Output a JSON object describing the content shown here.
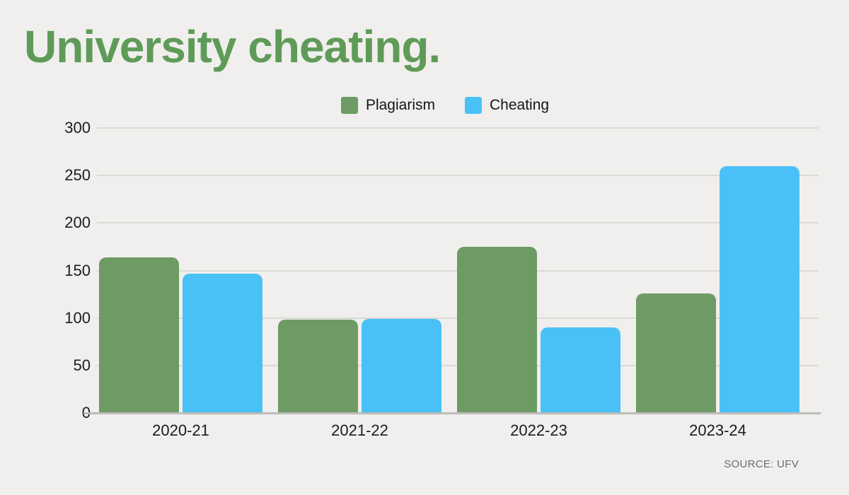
{
  "title": "University cheating.",
  "source": "SOURCE: UFV",
  "colors": {
    "background": "#f0efed",
    "title_text": "#5f9b58",
    "plagiarism_green": "#6e9a64",
    "cheating_blue": "#4ac1f6",
    "axis_text": "#1c1c1c",
    "gridline": "#d9d9d6",
    "baseline": "#bcbcba",
    "source_text": "#6b6b6b"
  },
  "chart_data": {
    "type": "bar",
    "title": "University cheating.",
    "categories": [
      "2020-21",
      "2021-22",
      "2022-23",
      "2023-24"
    ],
    "series": [
      {
        "name": "Plagiarism",
        "color": "#6e9a64",
        "values": [
          164,
          98,
          175,
          126
        ]
      },
      {
        "name": "Cheating",
        "color": "#4ac1f6",
        "values": [
          147,
          99,
          90,
          260
        ]
      }
    ],
    "xlabel": "",
    "ylabel": "",
    "ylim": [
      0,
      300
    ],
    "yticks": [
      0,
      50,
      100,
      150,
      200,
      250,
      300
    ],
    "grid": true,
    "legend_position": "top-center",
    "source": "SOURCE: UFV"
  }
}
